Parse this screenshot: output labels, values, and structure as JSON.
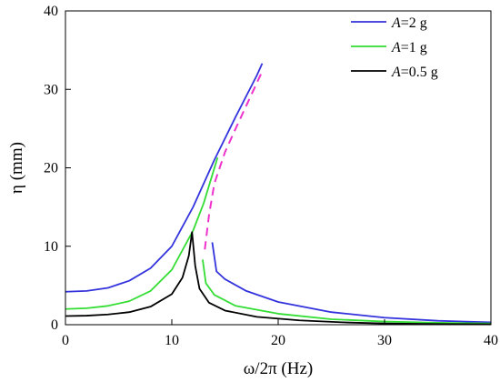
{
  "chart_data": {
    "type": "line",
    "title": "",
    "xlabel": "ω/2π (Hz)",
    "ylabel": "η (mm)",
    "xlim": [
      0,
      40
    ],
    "ylim": [
      0,
      40
    ],
    "xticks": [
      "0",
      "10",
      "20",
      "30",
      "40"
    ],
    "yticks": [
      "0",
      "10",
      "20",
      "30",
      "40"
    ],
    "grid": false,
    "legend_position": "top-right",
    "series": [
      {
        "name": "A=2 g",
        "color": "#3333dd",
        "style": "solid",
        "segments": [
          [
            [
              0,
              4.2
            ],
            [
              2,
              4.3
            ],
            [
              4,
              4.7
            ],
            [
              6,
              5.6
            ],
            [
              8,
              7.2
            ],
            [
              10,
              10.0
            ],
            [
              12,
              15.0
            ],
            [
              14,
              21.0
            ],
            [
              16,
              26.5
            ],
            [
              18,
              31.8
            ],
            [
              18.5,
              33.3
            ]
          ],
          [
            [
              13.8,
              10.5
            ],
            [
              14.2,
              6.8
            ],
            [
              15,
              5.8
            ],
            [
              17,
              4.3
            ],
            [
              20,
              2.9
            ],
            [
              25,
              1.6
            ],
            [
              30,
              0.9
            ],
            [
              35,
              0.5
            ],
            [
              40,
              0.3
            ]
          ]
        ]
      },
      {
        "name": "A=1 g",
        "color": "#33dd33",
        "style": "solid",
        "segments": [
          [
            [
              0,
              2.0
            ],
            [
              2,
              2.1
            ],
            [
              4,
              2.4
            ],
            [
              6,
              3.0
            ],
            [
              8,
              4.3
            ],
            [
              10,
              7.0
            ],
            [
              12,
              12.0
            ],
            [
              13,
              15.5
            ],
            [
              14.3,
              21.3
            ]
          ],
          [
            [
              12.9,
              8.3
            ],
            [
              13.2,
              5.3
            ],
            [
              14,
              3.8
            ],
            [
              16,
              2.4
            ],
            [
              20,
              1.4
            ],
            [
              25,
              0.7
            ],
            [
              30,
              0.4
            ],
            [
              35,
              0.25
            ],
            [
              40,
              0.15
            ]
          ]
        ]
      },
      {
        "name": "A=0.5 g",
        "color": "#000000",
        "style": "solid",
        "segments": [
          [
            [
              0,
              1.1
            ],
            [
              2,
              1.15
            ],
            [
              4,
              1.3
            ],
            [
              6,
              1.6
            ],
            [
              8,
              2.3
            ],
            [
              10,
              3.9
            ],
            [
              11,
              6.0
            ],
            [
              11.6,
              8.8
            ],
            [
              11.9,
              11.8
            ],
            [
              12.2,
              7.5
            ],
            [
              12.6,
              4.6
            ],
            [
              13.5,
              2.8
            ],
            [
              15,
              1.8
            ],
            [
              18,
              1.0
            ],
            [
              22,
              0.55
            ],
            [
              26,
              0.3
            ],
            [
              30,
              0.15
            ],
            [
              35,
              0.08
            ],
            [
              40,
              0.05
            ]
          ]
        ]
      },
      {
        "name": "",
        "color": "#ee33cc",
        "style": "dashed",
        "segments": [
          [
            [
              13.1,
              9.6
            ],
            [
              13.5,
              14.0
            ],
            [
              14.0,
              18.0
            ],
            [
              15.0,
              22.0
            ],
            [
              16.0,
              25.0
            ],
            [
              17.2,
              28.5
            ],
            [
              18.5,
              32.3
            ]
          ]
        ]
      }
    ]
  }
}
